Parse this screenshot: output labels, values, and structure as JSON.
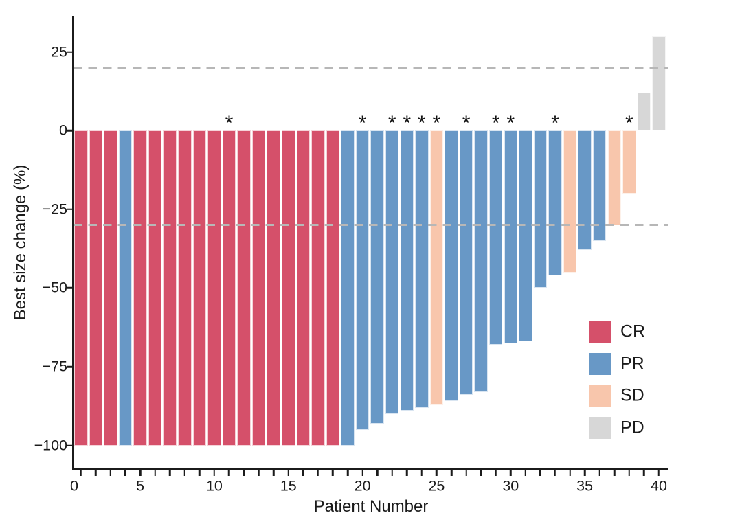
{
  "chart_data": {
    "type": "bar",
    "subtype": "waterfall",
    "title": "",
    "xlabel": "Patient Number",
    "ylabel": "Best size change (%)",
    "xlim": [
      0.5,
      40.65
    ],
    "ylim": [
      -107.5,
      36.5
    ],
    "grid": "off",
    "x_major_tick_labels": [
      "0",
      "5",
      "10",
      "15",
      "20",
      "25",
      "30",
      "35",
      "40"
    ],
    "x_major_tick_values": [
      0,
      5,
      10,
      15,
      20,
      25,
      30,
      35,
      40
    ],
    "x_minor_ticks_every_patient": true,
    "y_tick_labels": [
      "25",
      "0",
      "−25",
      "−50",
      "−75",
      "−100"
    ],
    "y_tick_values": [
      25,
      0,
      -25,
      -50,
      -75,
      -100
    ],
    "reference_lines": [
      {
        "value": 20,
        "style": "dashed",
        "color": "#b7b7b7"
      },
      {
        "value": -30,
        "style": "dashed",
        "color": "#b7b7b7"
      }
    ],
    "star_annotation_glyph": "*",
    "legend": {
      "position": "lower-right",
      "entries": [
        {
          "label": "CR",
          "color": "#d5506a"
        },
        {
          "label": "PR",
          "color": "#6898c6"
        },
        {
          "label": "SD",
          "color": "#f8c6ac"
        },
        {
          "label": "PD",
          "color": "#d7d7d7"
        }
      ]
    },
    "patients": [
      {
        "patient": 1,
        "response": "CR",
        "value": -100,
        "star": false
      },
      {
        "patient": 2,
        "response": "CR",
        "value": -100,
        "star": false
      },
      {
        "patient": 3,
        "response": "CR",
        "value": -100,
        "star": false
      },
      {
        "patient": 4,
        "response": "PR",
        "value": -100,
        "star": false
      },
      {
        "patient": 5,
        "response": "CR",
        "value": -100,
        "star": false
      },
      {
        "patient": 6,
        "response": "CR",
        "value": -100,
        "star": false
      },
      {
        "patient": 7,
        "response": "CR",
        "value": -100,
        "star": false
      },
      {
        "patient": 8,
        "response": "CR",
        "value": -100,
        "star": false
      },
      {
        "patient": 9,
        "response": "CR",
        "value": -100,
        "star": false
      },
      {
        "patient": 10,
        "response": "CR",
        "value": -100,
        "star": false
      },
      {
        "patient": 11,
        "response": "CR",
        "value": -100,
        "star": true
      },
      {
        "patient": 12,
        "response": "CR",
        "value": -100,
        "star": false
      },
      {
        "patient": 13,
        "response": "CR",
        "value": -100,
        "star": false
      },
      {
        "patient": 14,
        "response": "CR",
        "value": -100,
        "star": false
      },
      {
        "patient": 15,
        "response": "CR",
        "value": -100,
        "star": false
      },
      {
        "patient": 16,
        "response": "CR",
        "value": -100,
        "star": false
      },
      {
        "patient": 17,
        "response": "CR",
        "value": -100,
        "star": false
      },
      {
        "patient": 18,
        "response": "CR",
        "value": -100,
        "star": false
      },
      {
        "patient": 19,
        "response": "PR",
        "value": -100,
        "star": false
      },
      {
        "patient": 20,
        "response": "PR",
        "value": -95,
        "star": true
      },
      {
        "patient": 21,
        "response": "PR",
        "value": -93,
        "star": false
      },
      {
        "patient": 22,
        "response": "PR",
        "value": -90,
        "star": true
      },
      {
        "patient": 23,
        "response": "PR",
        "value": -89,
        "star": true
      },
      {
        "patient": 24,
        "response": "PR",
        "value": -88,
        "star": true
      },
      {
        "patient": 25,
        "response": "SD",
        "value": -87,
        "star": true
      },
      {
        "patient": 26,
        "response": "PR",
        "value": -86,
        "star": false
      },
      {
        "patient": 27,
        "response": "PR",
        "value": -84,
        "star": true
      },
      {
        "patient": 28,
        "response": "PR",
        "value": -83,
        "star": false
      },
      {
        "patient": 29,
        "response": "PR",
        "value": -68,
        "star": true
      },
      {
        "patient": 30,
        "response": "PR",
        "value": -67.5,
        "star": true
      },
      {
        "patient": 31,
        "response": "PR",
        "value": -67,
        "star": false
      },
      {
        "patient": 32,
        "response": "PR",
        "value": -50,
        "star": false
      },
      {
        "patient": 33,
        "response": "PR",
        "value": -46,
        "star": true
      },
      {
        "patient": 34,
        "response": "SD",
        "value": -45,
        "star": false
      },
      {
        "patient": 35,
        "response": "PR",
        "value": -38,
        "star": false
      },
      {
        "patient": 36,
        "response": "PR",
        "value": -35,
        "star": false
      },
      {
        "patient": 37,
        "response": "SD",
        "value": -30,
        "star": false
      },
      {
        "patient": 38,
        "response": "SD",
        "value": -20,
        "star": true
      },
      {
        "patient": 39,
        "response": "PD",
        "value": 12,
        "star": false
      },
      {
        "patient": 40,
        "response": "PD",
        "value": 30,
        "star": false
      }
    ]
  },
  "colors": {
    "axis": "#1b1b1b",
    "dashed_reference": "#b7b7b7",
    "background": "#ffffff"
  }
}
